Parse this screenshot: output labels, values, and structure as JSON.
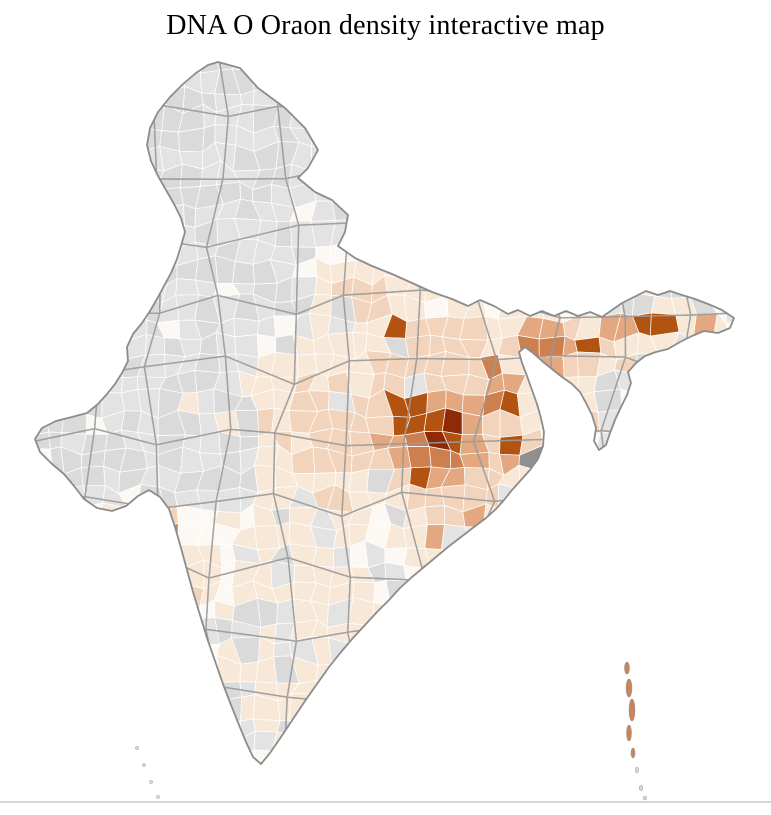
{
  "title": "DNA O Oraon density interactive map",
  "map": {
    "background": "#ffffff",
    "district_border_color": "#ffffff",
    "state_border_color": "#9a9a9a",
    "outline_color": "#8c8c8c",
    "no_data_color": "#e3e3e3",
    "no_data_color_alt": "#dadada",
    "no_data_dark_color": "#8f8f8f",
    "base_color": "#fcf9f5",
    "island_color": "#c8855c",
    "density_scale": [
      "#f8e8d8",
      "#f1d4bb",
      "#e3a87f",
      "#cd7f50",
      "#b25312",
      "#8e2a05"
    ]
  }
}
